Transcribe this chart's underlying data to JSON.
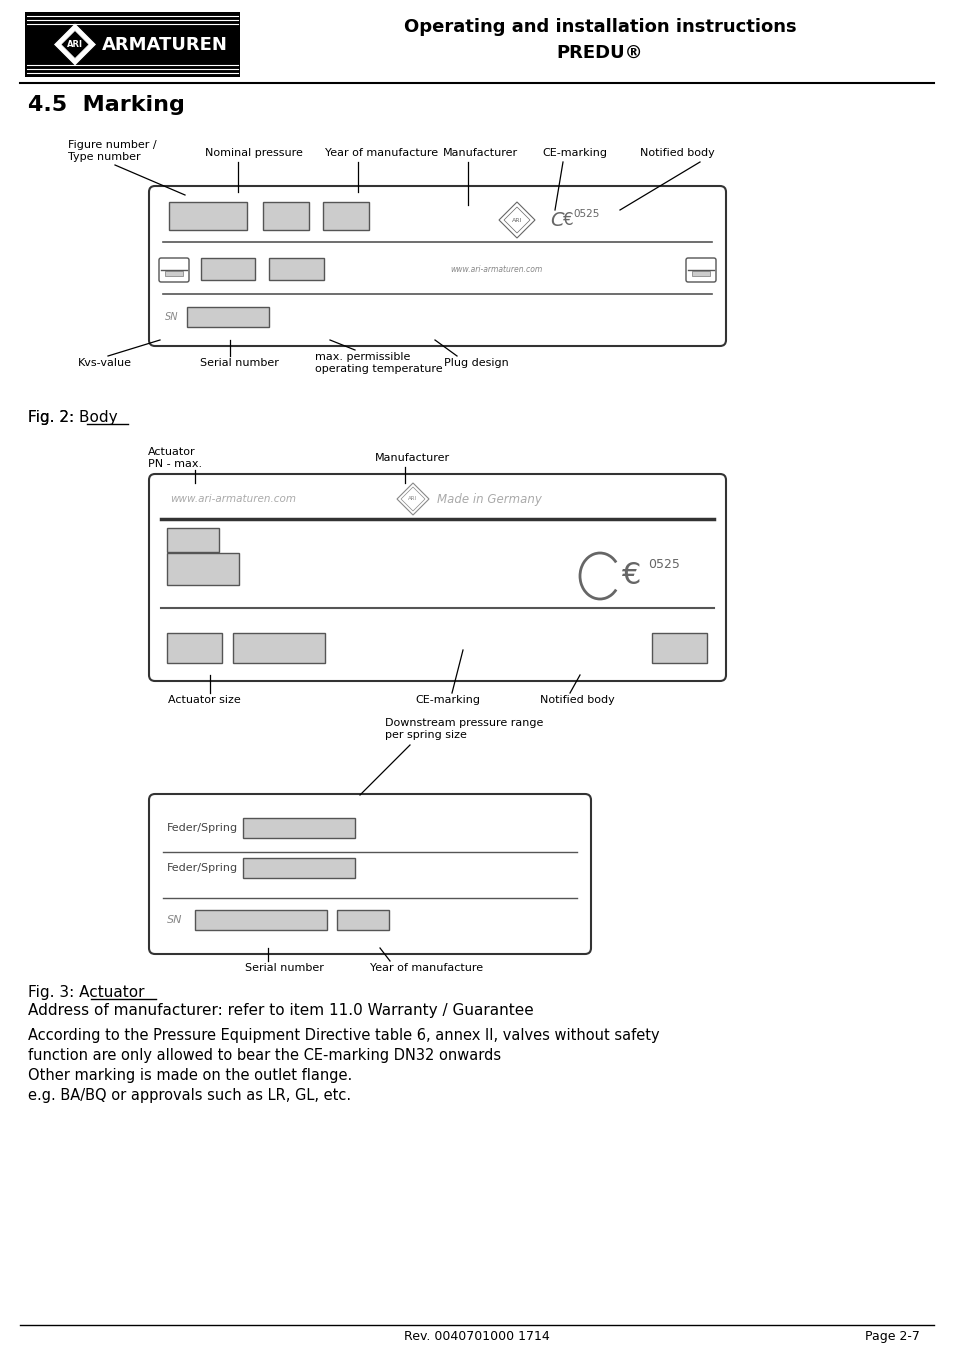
{
  "header_title_line1": "Operating and installation instructions",
  "header_title_line2": "PREDU®",
  "section_title": "4.5  Marking",
  "fig2_caption": "Fig. 2: Body",
  "fig3_caption_line1": "Fig. 3: Actuator",
  "fig3_caption_line2": "Address of manufacturer: refer to item 11.0 Warranty / Guarantee",
  "body_text": [
    "According to the Pressure Equipment Directive table 6, annex II, valves without safety",
    "function are only allowed to bear the CE-marking DN32 onwards",
    "Other marking is made on the outlet flange.",
    "e.g. BA/BQ or approvals such as LR, GL, etc."
  ],
  "footer_left": "Rev. 0040701000 1714",
  "footer_right": "Page 2-7",
  "bg": "#ffffff",
  "black": "#000000",
  "gray_line": "#555555",
  "gray_fill": "#cccccc",
  "light_gray": "#aaaaaa"
}
